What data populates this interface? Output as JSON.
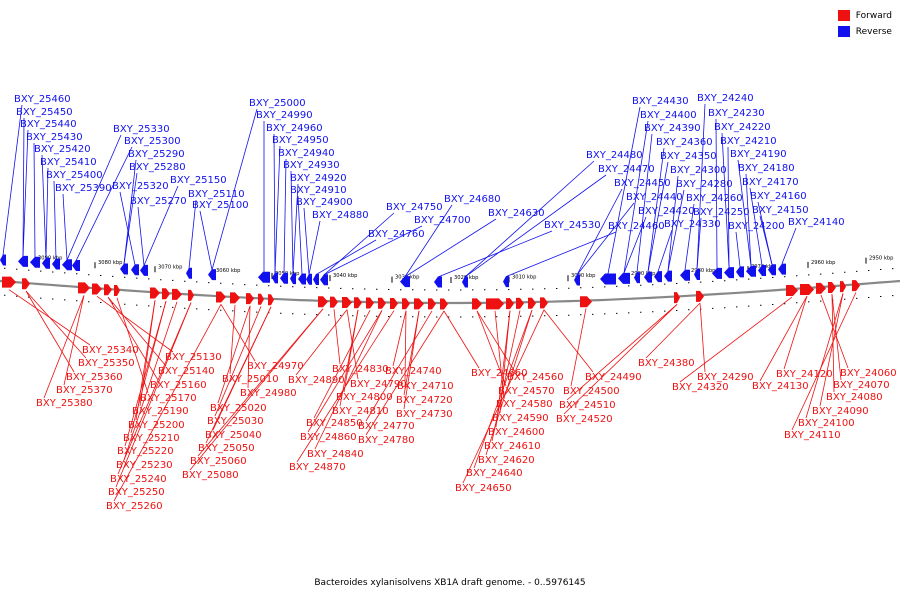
{
  "legend": [
    {
      "label": "Forward",
      "color": "#ee1111"
    },
    {
      "label": "Reverse",
      "color": "#1111ee"
    }
  ],
  "caption": "Bacteroides xylanisolvens XB1A draft genome. - 0..5976145",
  "chart_data": {
    "type": "genome-map",
    "axis": {
      "unit": "kbp",
      "ticks": [
        "3090 kbp",
        "3080 kbp",
        "3070 kbp",
        "3060 kbp",
        "3050 kbp",
        "3040 kbp",
        "3030 kbp",
        "3020 kbp",
        "3010 kbp",
        "3000 kbp",
        "2990 kbp",
        "2980 kbp",
        "2970 kbp",
        "2960 kbp",
        "2950 kbp"
      ]
    },
    "reverse_labels": [
      "BXY_25460",
      "BXY_25450",
      "BXY_25440",
      "BXY_25430",
      "BXY_25420",
      "BXY_25410",
      "BXY_25400",
      "BXY_25390",
      "BXY_25330",
      "BXY_25300",
      "BXY_25290",
      "BXY_25280",
      "BXY_25320",
      "BXY_25270",
      "BXY_25150",
      "BXY_25110",
      "BXY_25100",
      "BXY_25000",
      "BXY_24990",
      "BXY_24960",
      "BXY_24950",
      "BXY_24940",
      "BXY_24930",
      "BXY_24920",
      "BXY_24910",
      "BXY_24900",
      "BXY_24880",
      "BXY_24760",
      "BXY_24750",
      "BXY_24700",
      "BXY_24680",
      "BXY_24630",
      "BXY_24530",
      "BXY_24480",
      "BXY_24470",
      "BXY_24460",
      "BXY_24450",
      "BXY_24440",
      "BXY_24430",
      "BXY_24420",
      "BXY_24400",
      "BXY_24390",
      "BXY_24360",
      "BXY_24350",
      "BXY_24330",
      "BXY_24300",
      "BXY_24280",
      "BXY_24260",
      "BXY_24250",
      "BXY_24240",
      "BXY_24230",
      "BXY_24220",
      "BXY_24210",
      "BXY_24200",
      "BXY_24190",
      "BXY_24180",
      "BXY_24170",
      "BXY_24160",
      "BXY_24150",
      "BXY_24140"
    ],
    "forward_labels": [
      "BXY_25340",
      "BXY_25350",
      "BXY_25360",
      "BXY_25370",
      "BXY_25380",
      "BXY_25130",
      "BXY_25140",
      "BXY_25160",
      "BXY_25170",
      "BXY_25190",
      "BXY_25200",
      "BXY_25210",
      "BXY_25220",
      "BXY_25230",
      "BXY_25240",
      "BXY_25250",
      "BXY_25260",
      "BXY_24970",
      "BXY_25010",
      "BXY_24980",
      "BXY_25020",
      "BXY_25030",
      "BXY_25040",
      "BXY_25050",
      "BXY_25060",
      "BXY_25080",
      "BXY_24830",
      "BXY_24890",
      "BXY_24790",
      "BXY_24800",
      "BXY_24810",
      "BXY_24850",
      "BXY_24860",
      "BXY_24840",
      "BXY_24870",
      "BXY_24740",
      "BXY_24710",
      "BXY_24720",
      "BXY_24730",
      "BXY_24770",
      "BXY_24780",
      "BXY_24660",
      "BXY_24560",
      "BXY_24570",
      "BXY_24580",
      "BXY_24590",
      "BXY_24600",
      "BXY_24610",
      "BXY_24620",
      "BXY_24640",
      "BXY_24650",
      "BXY_24490",
      "BXY_24500",
      "BXY_24510",
      "BXY_24520",
      "BXY_24380",
      "BXY_24290",
      "BXY_24320",
      "BXY_24120",
      "BXY_24130",
      "BXY_24060",
      "BXY_24070",
      "BXY_24080",
      "BXY_24090",
      "BXY_24100",
      "BXY_24110"
    ]
  }
}
